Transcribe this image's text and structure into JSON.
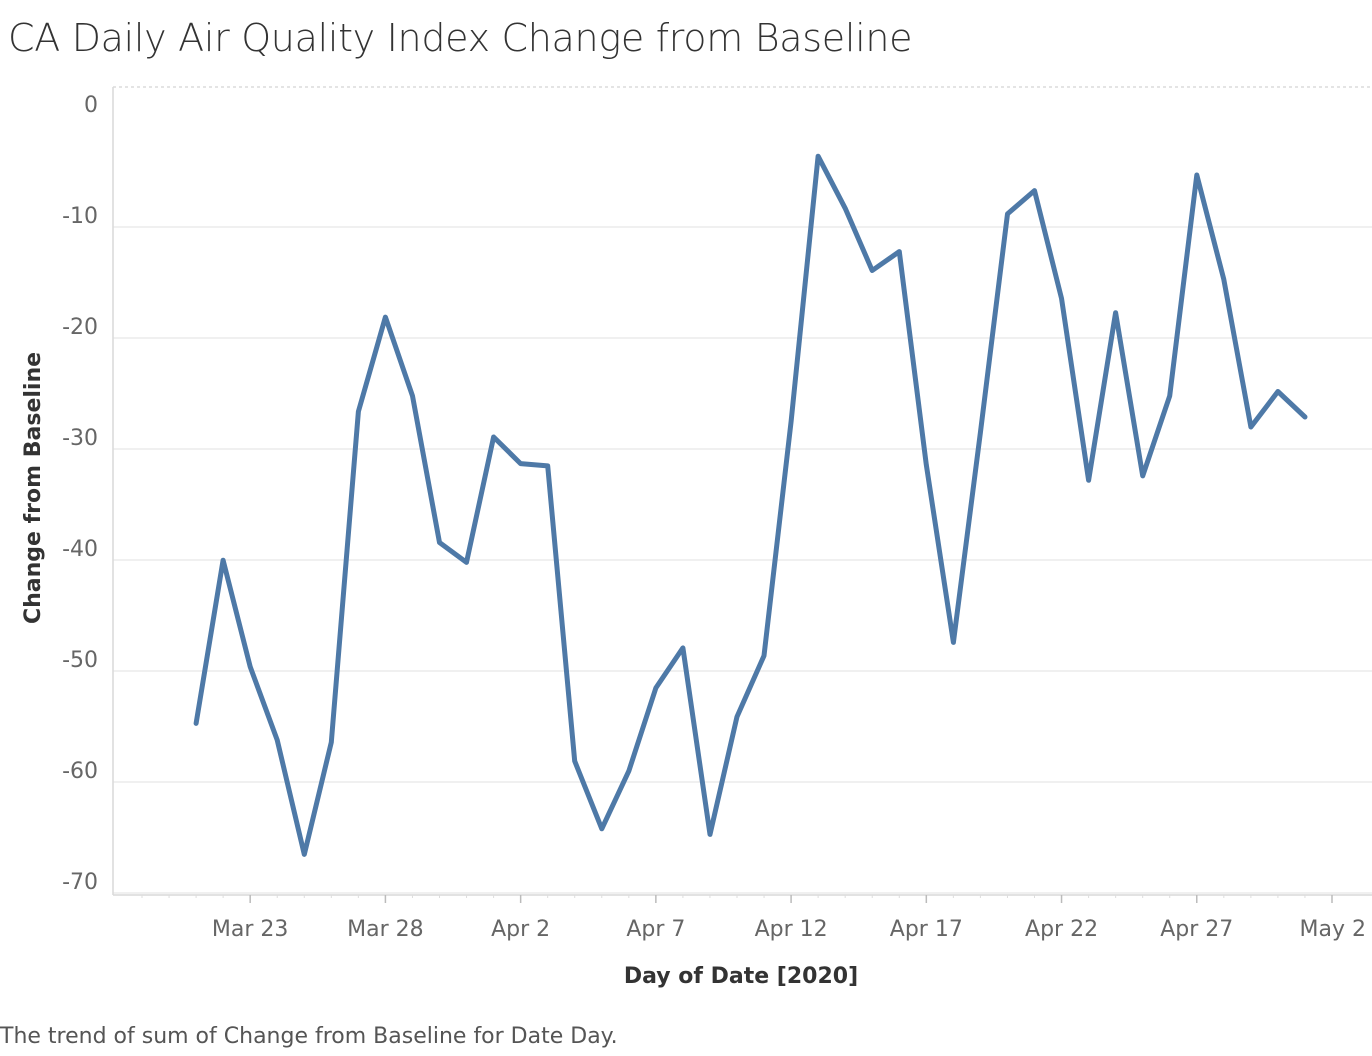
{
  "title": "CA Daily Air Quality Index Change from Baseline",
  "caption": "The trend of sum of Change from Baseline for Date Day.",
  "colors": {
    "line": "#4e79a7",
    "grid": "#ebebeb",
    "axis": "#d9d9d9",
    "tick_text": "#666666",
    "title_text": "#333333"
  },
  "chart_data": {
    "type": "line",
    "xlabel": "Day of Date [2020]",
    "ylabel": "Change from Baseline",
    "ylim": [
      -71,
      1.5
    ],
    "xlim": [
      "2020-03-19",
      "2020-05-02"
    ],
    "yticks": [
      0,
      -10,
      -20,
      -30,
      -40,
      -50,
      -60,
      -70
    ],
    "xticks": [
      {
        "date": "2020-03-23",
        "label": "Mar 23"
      },
      {
        "date": "2020-03-28",
        "label": "Mar 28"
      },
      {
        "date": "2020-04-02",
        "label": "Apr 2"
      },
      {
        "date": "2020-04-07",
        "label": "Apr 7"
      },
      {
        "date": "2020-04-12",
        "label": "Apr 12"
      },
      {
        "date": "2020-04-17",
        "label": "Apr 17"
      },
      {
        "date": "2020-04-22",
        "label": "Apr 22"
      },
      {
        "date": "2020-04-27",
        "label": "Apr 27"
      },
      {
        "date": "2020-05-02",
        "label": "May 2"
      }
    ],
    "grid": true,
    "series": [
      {
        "x": [
          "2020-03-21",
          "2020-03-22",
          "2020-03-23",
          "2020-03-24",
          "2020-03-25",
          "2020-03-26",
          "2020-03-27",
          "2020-03-28",
          "2020-03-29",
          "2020-03-30",
          "2020-03-31",
          "2020-04-01",
          "2020-04-02",
          "2020-04-03",
          "2020-04-04",
          "2020-04-05",
          "2020-04-06",
          "2020-04-07",
          "2020-04-08",
          "2020-04-09",
          "2020-04-10",
          "2020-04-11",
          "2020-04-12",
          "2020-04-13",
          "2020-04-14",
          "2020-04-15",
          "2020-04-16",
          "2020-04-17",
          "2020-04-18",
          "2020-04-19",
          "2020-04-20",
          "2020-04-21",
          "2020-04-22",
          "2020-04-23",
          "2020-04-24",
          "2020-04-25",
          "2020-04-26",
          "2020-04-27",
          "2020-04-28",
          "2020-04-29",
          "2020-04-30",
          "2020-05-01"
        ],
        "values": [
          -55.8,
          -41.1,
          -50.7,
          -57.3,
          -67.6,
          -57.5,
          -27.7,
          -19.2,
          -26.3,
          -39.5,
          -41.3,
          -30.0,
          -32.4,
          -32.6,
          -59.2,
          -65.3,
          -60.1,
          -52.6,
          -49.0,
          -65.8,
          -55.2,
          -49.7,
          -28.6,
          -4.7,
          -9.4,
          -15.0,
          -13.3,
          -32.5,
          -48.5,
          -29.6,
          -9.9,
          -7.8,
          -17.5,
          -33.9,
          -18.8,
          -33.5,
          -26.3,
          -6.4,
          -15.8,
          -29.1,
          -25.9,
          -28.2
        ]
      }
    ]
  }
}
